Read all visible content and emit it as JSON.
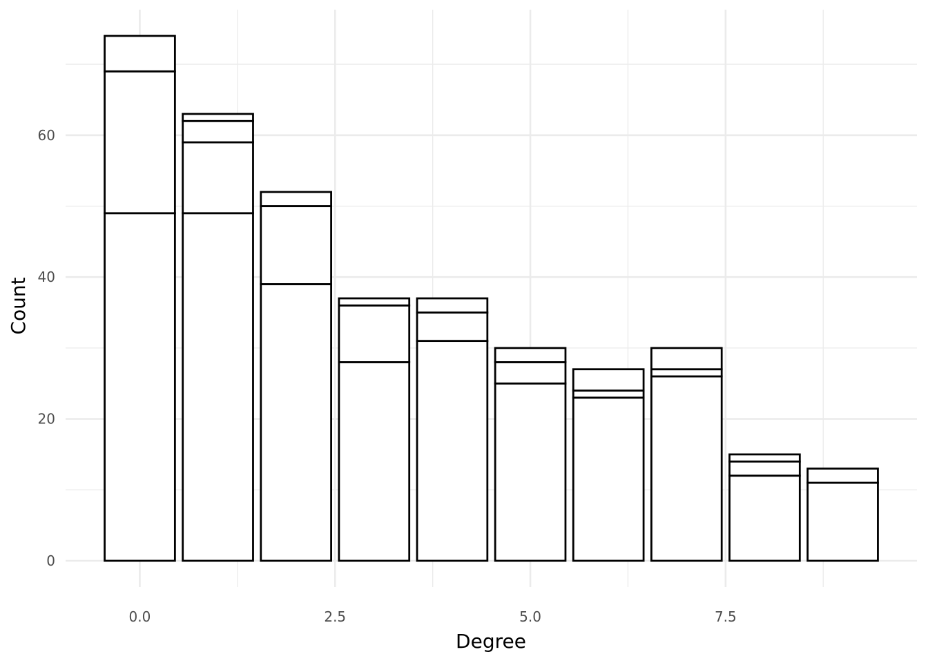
{
  "chart_data": {
    "type": "bar",
    "stacked": true,
    "xlabel": "Degree",
    "ylabel": "Count",
    "x": [
      0,
      1,
      2,
      3,
      4,
      5,
      6,
      7,
      8,
      9
    ],
    "stacks": [
      [
        49,
        20,
        5
      ],
      [
        49,
        10,
        3,
        1
      ],
      [
        39,
        11,
        2
      ],
      [
        28,
        8,
        1
      ],
      [
        31,
        4,
        2
      ],
      [
        25,
        3,
        2
      ],
      [
        23,
        1,
        3
      ],
      [
        26,
        1,
        3
      ],
      [
        12,
        2,
        1
      ],
      [
        11,
        2
      ]
    ],
    "totals": [
      74,
      63,
      52,
      37,
      37,
      30,
      27,
      30,
      15,
      13
    ],
    "xlim": [
      -0.95,
      9.95
    ],
    "ylim": [
      -3.7,
      77.7
    ],
    "xticks": [
      0.0,
      2.5,
      5.0,
      7.5
    ],
    "xtick_labels": [
      "0.0",
      "2.5",
      "5.0",
      "7.5"
    ],
    "yticks": [
      0,
      20,
      40,
      60
    ],
    "ytick_labels": [
      "0",
      "20",
      "40",
      "60"
    ],
    "grid": true,
    "legend": "none",
    "colors": {
      "fill": "#ffffff",
      "outline": "#000000",
      "grid": "#ebebeb"
    }
  }
}
